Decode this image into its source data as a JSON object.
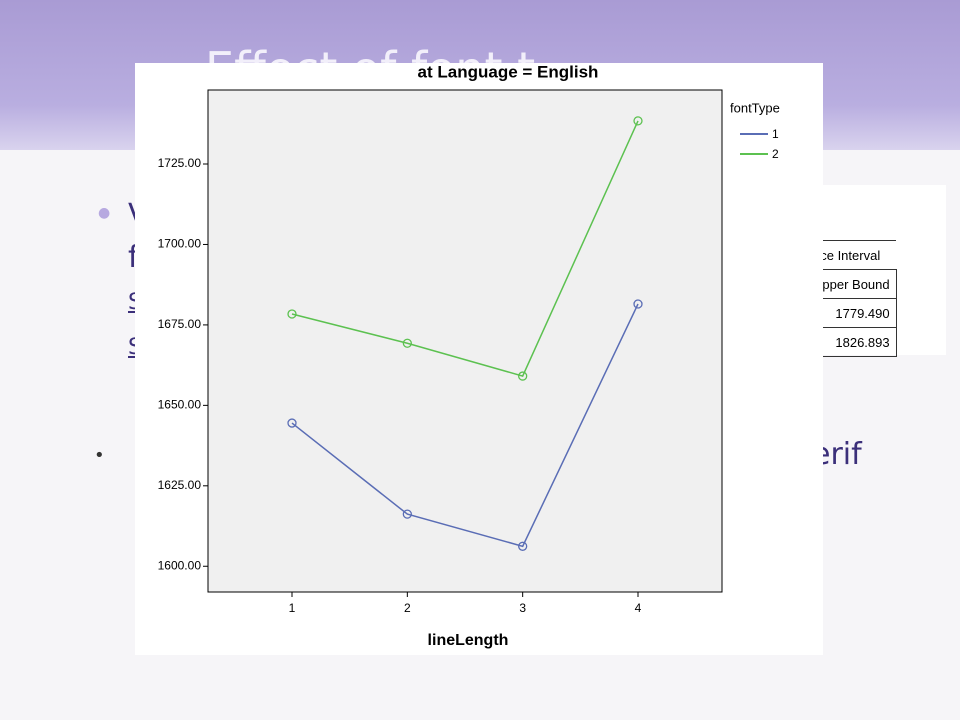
{
  "slide": {
    "title": "Effect of font t",
    "fragments": [
      "V",
      "f",
      "S",
      "S",
      "erif"
    ],
    "table": {
      "header": "nce Interval",
      "subheader": "Upper Bound",
      "rows": [
        "1779.490",
        "1826.893"
      ]
    }
  },
  "chart_data": {
    "type": "line",
    "title": "at Language = English",
    "x_label": "lineLength",
    "legend_title": "fontType",
    "categories": [
      "1",
      "2",
      "3",
      "4"
    ],
    "series": [
      {
        "name": "1",
        "color": "#5a6db5",
        "values": [
          1644.5,
          1616.2,
          1606.2,
          1681.5
        ]
      },
      {
        "name": "2",
        "color": "#5cc150",
        "values": [
          1678.4,
          1669.3,
          1659.1,
          1738.4
        ]
      }
    ],
    "ylim": [
      1592,
      1748
    ],
    "yticks": [
      {
        "value": 1600,
        "label": "1600.00"
      },
      {
        "value": 1625,
        "label": "1625.00"
      },
      {
        "value": 1650,
        "label": "1650.00"
      },
      {
        "value": 1675,
        "label": "1675.00"
      },
      {
        "value": 1700,
        "label": "1700.00"
      },
      {
        "value": 1725,
        "label": "1725.00"
      }
    ]
  }
}
